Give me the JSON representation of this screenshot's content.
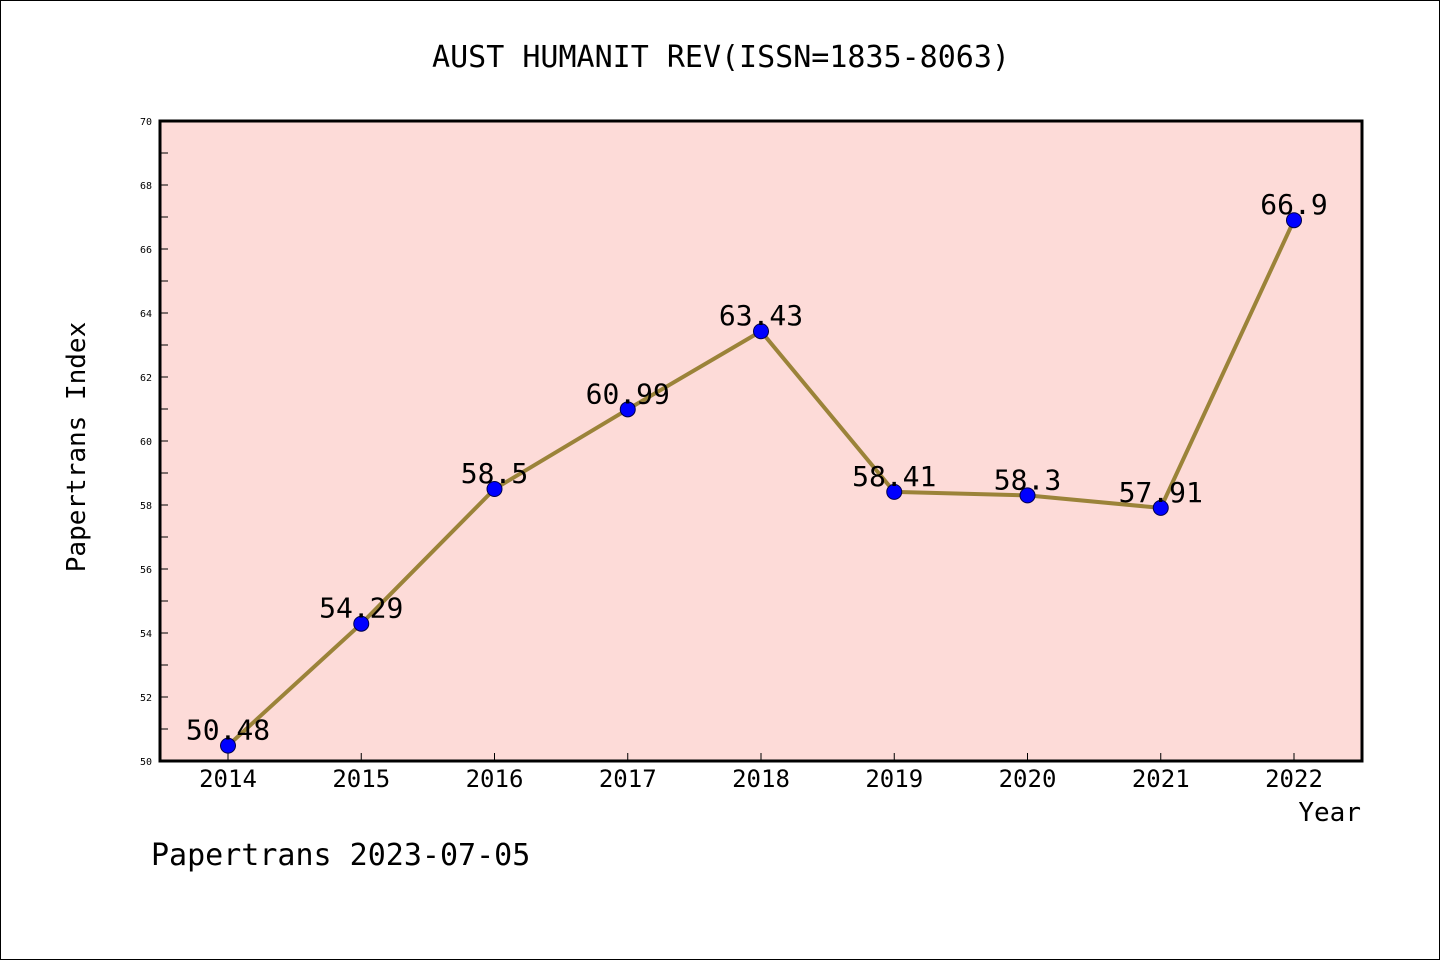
{
  "chart_data": {
    "type": "line",
    "title": "AUST HUMANIT REV(ISSN=1835-8063)",
    "xlabel": "Year",
    "ylabel": "Papertrans Index",
    "ylim": [
      50,
      70
    ],
    "yticks": [
      50,
      52,
      54,
      56,
      58,
      60,
      62,
      64,
      66,
      68,
      70
    ],
    "categories": [
      "2014",
      "2015",
      "2016",
      "2017",
      "2018",
      "2019",
      "2020",
      "2021",
      "2022"
    ],
    "series": [
      {
        "values": [
          50.48,
          54.29,
          58.5,
          60.99,
          63.43,
          58.41,
          58.3,
          57.91,
          66.9
        ],
        "labels": [
          "50.48",
          "54.29",
          "58.5",
          "60.99",
          "63.43",
          "58.41",
          "58.3",
          "57.91",
          "66.9"
        ]
      }
    ],
    "grid": false,
    "colors": {
      "plot_background": "#fddbd8",
      "line": "#9b8339",
      "marker": "#0000ff"
    }
  },
  "footer": "Papertrans 2023-07-05"
}
